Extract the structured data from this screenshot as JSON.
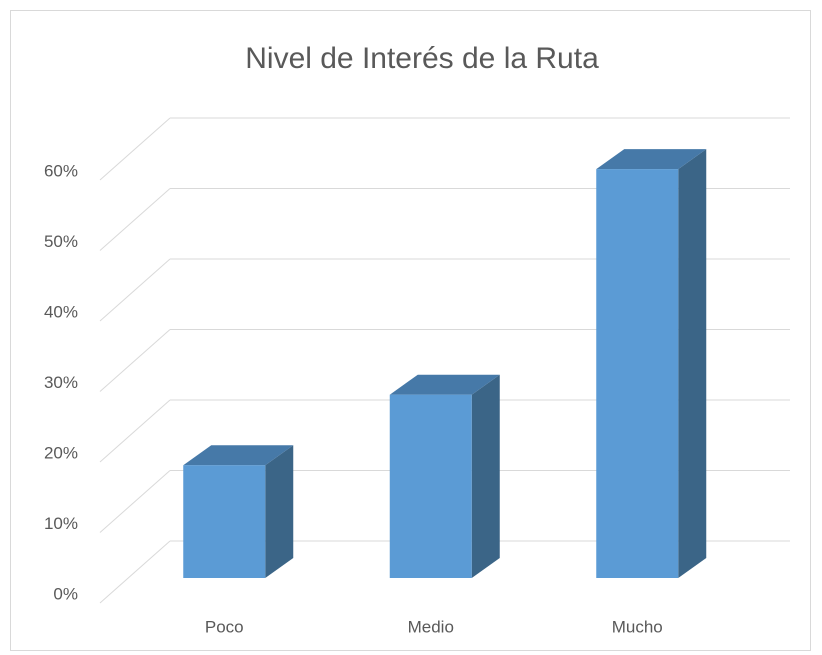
{
  "chart_data": {
    "type": "bar3d",
    "title": "Nivel de Interés de la Ruta",
    "categories": [
      "Poco",
      "Medio",
      "Mucho"
    ],
    "values": [
      16,
      26,
      58
    ],
    "color": "#5b9bd5",
    "ylim": [
      0,
      60
    ],
    "yticks": [
      {
        "value": 0,
        "label": "0%"
      },
      {
        "value": 10,
        "label": "10%"
      },
      {
        "value": 20,
        "label": "20%"
      },
      {
        "value": 30,
        "label": "30%"
      },
      {
        "value": 40,
        "label": "40%"
      },
      {
        "value": 50,
        "label": "50%"
      },
      {
        "value": 60,
        "label": "60%"
      }
    ],
    "grid": true
  }
}
